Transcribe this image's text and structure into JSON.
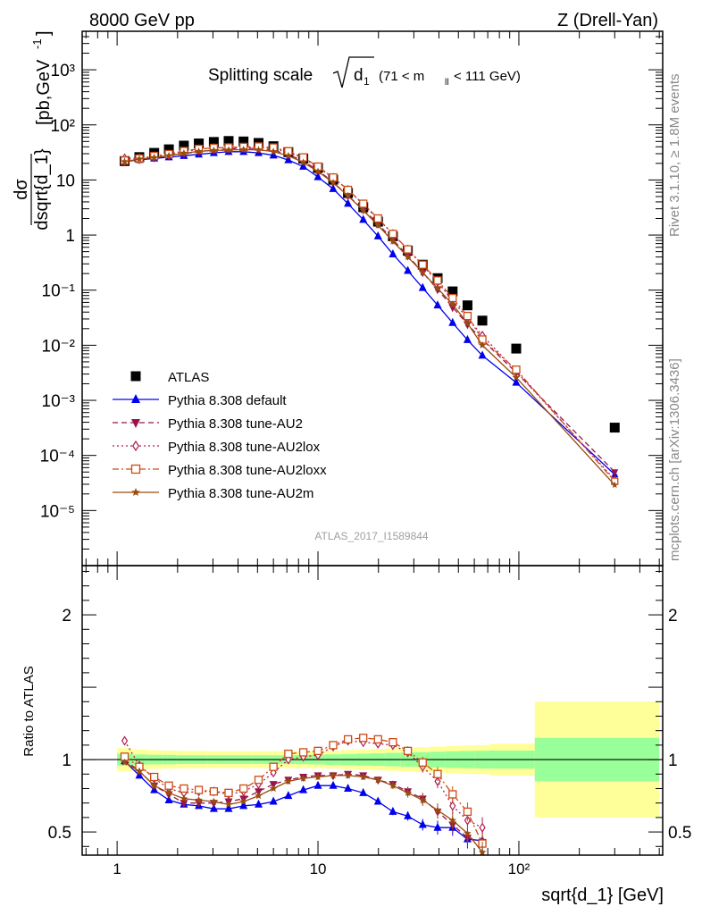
{
  "header": {
    "left": "8000 GeV pp",
    "right": "Z (Drell-Yan)"
  },
  "side": {
    "rivet": "Rivet 3.1.10, ≥ 1.8M events",
    "mcplots": "mcplots.cern.ch [arXiv:1306.3436]"
  },
  "chart_data": [
    {
      "type": "scatter",
      "title": "Splitting scale √d1 (71 < m_ll < 111 GeV)",
      "title_main": "Splitting scale",
      "title_symbol": "d",
      "title_sub": "1",
      "title_range": "(71 < m",
      "title_range_sub": "ll",
      "title_range_end": " < 111 GeV)",
      "ylabel": "dσ/dsqrt{d_1} [pb,GeV⁻¹]",
      "ylabel_num": "dσ",
      "ylabel_den": "dsqrt{d_1}",
      "ylabel_unit": "[pb,GeV",
      "ylabel_unit_sup": "-1",
      "ylabel_unit_end": "]",
      "xscale": "log",
      "yscale": "log",
      "xlim": [
        0.67,
        520
      ],
      "ylim": [
        1e-06,
        5000
      ],
      "legend_position": "bottom-left",
      "watermark": "ATLAS_2017_I1589844",
      "x_ticks": [
        "1",
        "10",
        "10²"
      ],
      "y_ticks": [
        "10⁻⁵",
        "10⁻⁴",
        "10⁻³",
        "10⁻²",
        "10⁻¹",
        "1",
        "10",
        "10²",
        "10³"
      ],
      "x": [
        1.09,
        1.29,
        1.53,
        1.81,
        2.15,
        2.55,
        3.03,
        3.59,
        4.26,
        5.06,
        6.0,
        7.12,
        8.45,
        10.0,
        11.9,
        14.1,
        16.8,
        19.9,
        23.6,
        28.0,
        33.2,
        39.4,
        46.8,
        55.5,
        65.8,
        97.0,
        300.0
      ],
      "series": [
        {
          "name": "ATLAS",
          "color": "#000000",
          "marker": "square",
          "values": [
            22,
            26,
            31,
            36,
            42,
            46,
            49,
            51,
            50,
            47,
            41,
            32,
            24.5,
            16.5,
            10.1,
            5.8,
            3.2,
            1.75,
            0.95,
            0.52,
            0.29,
            0.165,
            0.095,
            0.053,
            0.028,
            0.0087,
            0.00032
          ]
        },
        {
          "name": "Pythia 8.308 default",
          "color": "#0000ee",
          "marker": "triangle-up",
          "line": "solid",
          "values": [
            21.5,
            23.2,
            24.6,
            25.9,
            27.5,
            29.2,
            31.0,
            32.5,
            32.5,
            31.0,
            28.0,
            23.0,
            17.5,
            11.3,
            6.9,
            3.72,
            1.9,
            0.95,
            0.45,
            0.225,
            0.11,
            0.0532,
            0.0255,
            0.0125,
            0.0065,
            0.0021,
            4.5e-05
          ]
        },
        {
          "name": "Pythia 8.308 tune-AU2",
          "color": "#99144d",
          "marker": "triangle-down",
          "line": "dashed",
          "values": [
            21.5,
            23.5,
            25.5,
            27.5,
            30.0,
            32.7,
            35.0,
            36.8,
            37.5,
            37.0,
            34.5,
            29.0,
            22.0,
            15.0,
            9.1,
            5.2,
            2.9,
            1.6,
            0.82,
            0.425,
            0.21,
            0.103,
            0.049,
            0.0239,
            0.0125,
            0.0032,
            5e-05
          ]
        },
        {
          "name": "Pythia 8.308 tune-AU2lox",
          "color": "#b01e4e",
          "marker": "diamond-open",
          "line": "dotted",
          "values": [
            24.8,
            25.0,
            27.0,
            29.0,
            32.5,
            36.0,
            38.2,
            38.8,
            39.2,
            39.0,
            37.5,
            32.0,
            25.0,
            17.0,
            11.0,
            6.6,
            3.6,
            1.95,
            1.05,
            0.55,
            0.28,
            0.14,
            0.065,
            0.031,
            0.015,
            0.0034,
            3.6e-05
          ]
        },
        {
          "name": "Pythia 8.308 tune-AU2loxx",
          "color": "#cc4a14",
          "marker": "square-open",
          "line": "dashdot",
          "values": [
            22.5,
            24.6,
            27.3,
            29.5,
            33.5,
            36.7,
            38.2,
            39.0,
            39.8,
            40.5,
            38.8,
            33.2,
            25.7,
            17.5,
            11.1,
            6.6,
            3.7,
            2.0,
            1.05,
            0.55,
            0.29,
            0.15,
            0.072,
            0.034,
            0.0127,
            0.0036,
            3.4e-05
          ]
        },
        {
          "name": "Pythia 8.308 tune-AU2m",
          "color": "#994c0f",
          "marker": "star",
          "line": "solid",
          "values": [
            21.5,
            24.0,
            25.5,
            27.6,
            30.6,
            33.0,
            34.3,
            35.0,
            35.5,
            35.2,
            32.8,
            27.4,
            20.8,
            14.2,
            8.95,
            5.15,
            2.8,
            1.5,
            0.77,
            0.4,
            0.21,
            0.108,
            0.055,
            0.025,
            0.01,
            0.0026,
            2.9e-05
          ]
        }
      ]
    },
    {
      "type": "line",
      "ylabel": "Ratio to ATLAS",
      "xlabel": "sqrt{d_1} [GeV]",
      "xscale": "log",
      "xlim": [
        0.67,
        520
      ],
      "ylim": [
        0.34,
        2.34
      ],
      "y_ticks": [
        "0.5",
        "1",
        "2"
      ],
      "reference_line": 1,
      "x": [
        1.09,
        1.29,
        1.53,
        1.81,
        2.15,
        2.55,
        3.03,
        3.59,
        4.26,
        5.06,
        6.0,
        7.12,
        8.45,
        10.0,
        11.9,
        14.1,
        16.8,
        19.9,
        23.6,
        28.0,
        33.2,
        39.4,
        46.8,
        55.5,
        65.8
      ],
      "uncertainty_bands": {
        "edges": [
          1.0,
          1.19,
          1.41,
          1.67,
          1.98,
          2.35,
          2.79,
          3.31,
          3.92,
          4.65,
          5.52,
          6.55,
          7.77,
          9.21,
          10.9,
          13.0,
          15.4,
          18.3,
          21.7,
          25.7,
          30.5,
          36.2,
          42.9,
          50.9,
          60.4,
          71.7,
          120.0,
          500.0
        ],
        "stat_color": "#99ff99",
        "total_color": "#ffff99",
        "stat_half": [
          0.04,
          0.035,
          0.033,
          0.032,
          0.03,
          0.03,
          0.03,
          0.03,
          0.03,
          0.03,
          0.03,
          0.03,
          0.032,
          0.034,
          0.036,
          0.038,
          0.041,
          0.043,
          0.046,
          0.049,
          0.051,
          0.054,
          0.057,
          0.059,
          0.061,
          0.062,
          0.15
        ],
        "total_half": [
          0.08,
          0.07,
          0.065,
          0.062,
          0.06,
          0.06,
          0.058,
          0.058,
          0.058,
          0.058,
          0.058,
          0.058,
          0.058,
          0.06,
          0.062,
          0.066,
          0.07,
          0.074,
          0.078,
          0.082,
          0.086,
          0.09,
          0.094,
          0.098,
          0.1,
          0.11,
          0.4
        ]
      },
      "series": [
        {
          "name": "Pythia 8.308 default",
          "color": "#0000ee",
          "marker": "triangle-up",
          "line": "solid",
          "values": [
            0.99,
            0.89,
            0.79,
            0.72,
            0.69,
            0.68,
            0.66,
            0.66,
            0.68,
            0.69,
            0.71,
            0.75,
            0.79,
            0.82,
            0.82,
            0.8,
            0.77,
            0.71,
            0.64,
            0.61,
            0.55,
            0.53,
            0.53,
            0.45,
            0.44
          ]
        },
        {
          "name": "Pythia 8.308 tune-AU2",
          "color": "#99144d",
          "marker": "triangle-down",
          "line": "dashed",
          "values": [
            1.0,
            0.92,
            0.82,
            0.76,
            0.7,
            0.7,
            0.7,
            0.71,
            0.73,
            0.78,
            0.83,
            0.86,
            0.88,
            0.89,
            0.89,
            0.9,
            0.89,
            0.86,
            0.83,
            0.78,
            0.73,
            0.64,
            0.55,
            0.46,
            0.43
          ]
        },
        {
          "name": "Pythia 8.308 tune-AU2lox",
          "color": "#b01e4e",
          "marker": "diamond-open",
          "line": "dotted",
          "values": [
            1.13,
            0.96,
            0.87,
            0.8,
            0.77,
            0.78,
            0.78,
            0.76,
            0.78,
            0.83,
            0.91,
            1.0,
            1.02,
            1.03,
            1.09,
            1.13,
            1.12,
            1.11,
            1.1,
            1.05,
            0.95,
            0.85,
            0.68,
            0.58,
            0.53
          ]
        },
        {
          "name": "Pythia 8.308 tune-AU2loxx",
          "color": "#cc4a14",
          "marker": "square-open",
          "line": "dashdot",
          "values": [
            1.02,
            0.95,
            0.88,
            0.82,
            0.8,
            0.79,
            0.78,
            0.77,
            0.8,
            0.86,
            0.95,
            1.04,
            1.05,
            1.06,
            1.1,
            1.14,
            1.15,
            1.14,
            1.12,
            1.06,
            0.98,
            0.9,
            0.76,
            0.64,
            0.42
          ]
        },
        {
          "name": "Pythia 8.308 tune-AU2m",
          "color": "#994c0f",
          "marker": "star",
          "line": "solid",
          "values": [
            0.98,
            0.92,
            0.82,
            0.77,
            0.73,
            0.72,
            0.71,
            0.69,
            0.71,
            0.75,
            0.8,
            0.85,
            0.87,
            0.88,
            0.89,
            0.89,
            0.88,
            0.86,
            0.82,
            0.77,
            0.72,
            0.65,
            0.58,
            0.49,
            0.36
          ]
        }
      ]
    }
  ]
}
